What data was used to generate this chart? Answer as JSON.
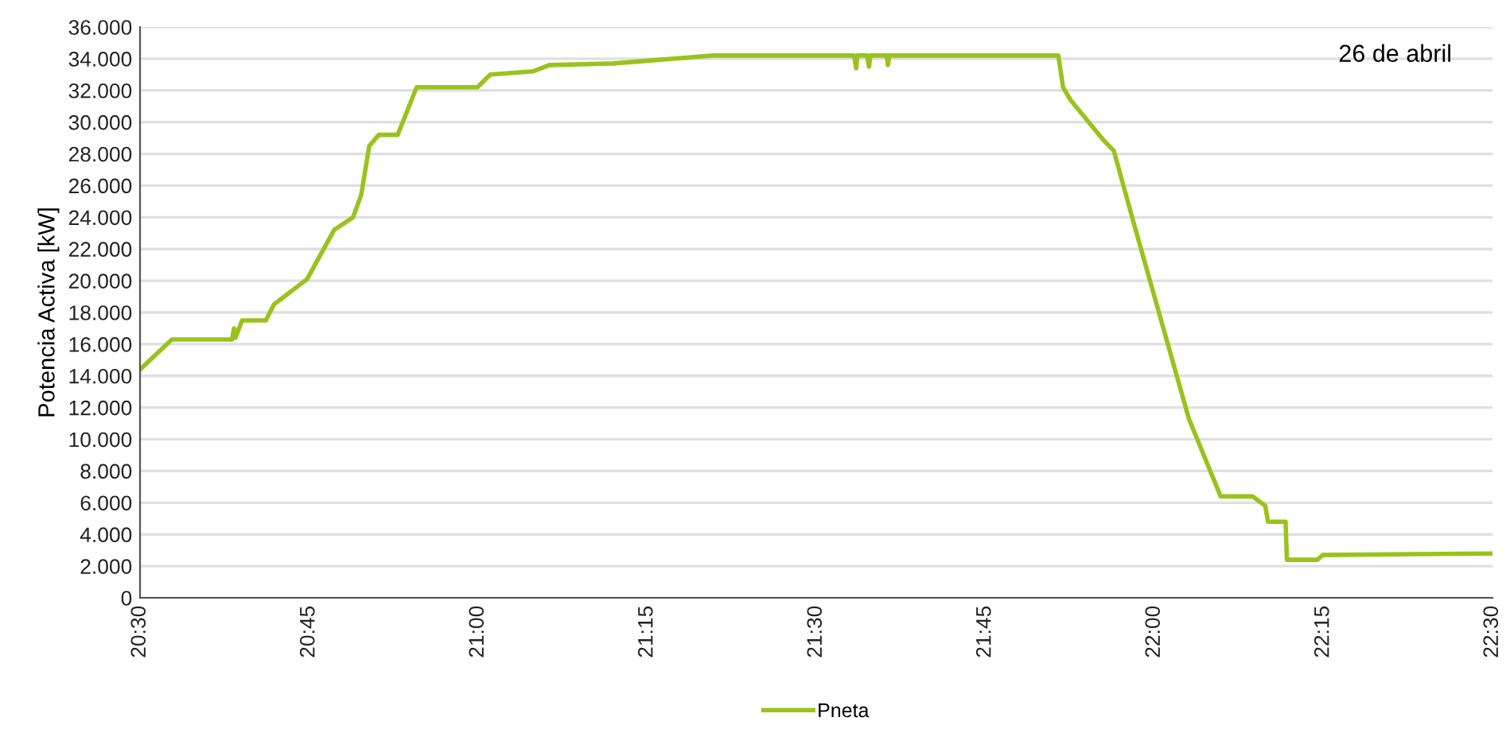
{
  "chart_data": {
    "type": "line",
    "ylabel": "Potencia Activa [kW]",
    "annotations": [
      "26 de abril"
    ],
    "x": [
      20.5,
      20.547,
      20.636,
      20.639,
      20.641,
      20.651,
      20.686,
      20.698,
      20.747,
      20.787,
      20.815,
      20.827,
      20.839,
      20.853,
      20.881,
      20.909,
      20.999,
      21.018,
      21.081,
      21.105,
      21.199,
      21.345,
      21.556,
      21.559,
      21.561,
      21.575,
      21.578,
      21.58,
      21.604,
      21.606,
      21.608,
      21.858,
      21.865,
      21.876,
      21.924,
      21.94,
      21.971,
      22.051,
      22.098,
      22.145,
      22.164,
      22.168,
      22.194,
      22.196,
      22.241,
      22.249,
      22.5
    ],
    "series": [
      {
        "name": "Pneta",
        "color": "#99c31c",
        "values": [
          14400,
          16300,
          16300,
          17000,
          16400,
          17500,
          17500,
          18500,
          20100,
          23200,
          24000,
          25400,
          28500,
          29200,
          29200,
          32200,
          32200,
          33000,
          33200,
          33600,
          33700,
          34200,
          34200,
          33400,
          34200,
          34200,
          33500,
          34200,
          34200,
          33600,
          34200,
          34200,
          32200,
          31400,
          28900,
          28200,
          23400,
          11300,
          6400,
          6400,
          5800,
          4800,
          4800,
          2400,
          2400,
          2700,
          2800
        ]
      }
    ],
    "xlim": [
      20.5,
      22.5
    ],
    "xticks": [
      {
        "value": 20.5,
        "label": "20:30"
      },
      {
        "value": 20.75,
        "label": "20:45"
      },
      {
        "value": 21.0,
        "label": "21:00"
      },
      {
        "value": 21.25,
        "label": "21:15"
      },
      {
        "value": 21.5,
        "label": "21:30"
      },
      {
        "value": 21.75,
        "label": "21:45"
      },
      {
        "value": 22.0,
        "label": "22:00"
      },
      {
        "value": 22.25,
        "label": "22:15"
      },
      {
        "value": 22.5,
        "label": "22:30"
      }
    ],
    "ylim": [
      0,
      36000
    ],
    "yticks": [
      0,
      {
        "value": 2000,
        "label": "2.000"
      },
      {
        "value": 4000,
        "label": "4.000"
      },
      {
        "value": 6000,
        "label": "6.000"
      },
      {
        "value": 8000,
        "label": "8.000"
      },
      {
        "value": 10000,
        "label": "10.000"
      },
      {
        "value": 12000,
        "label": "12.000"
      },
      {
        "value": 14000,
        "label": "14.000"
      },
      {
        "value": 16000,
        "label": "16.000"
      },
      {
        "value": 18000,
        "label": "18.000"
      },
      {
        "value": 20000,
        "label": "20.000"
      },
      {
        "value": 22000,
        "label": "22.000"
      },
      {
        "value": 24000,
        "label": "24.000"
      },
      {
        "value": 26000,
        "label": "26.000"
      },
      {
        "value": 28000,
        "label": "28.000"
      },
      {
        "value": 30000,
        "label": "30.000"
      },
      {
        "value": 32000,
        "label": "32.000"
      },
      {
        "value": 34000,
        "label": "34.000"
      },
      {
        "value": 36000,
        "label": "36.000"
      }
    ],
    "grid": "y",
    "legend": "bottom",
    "marker": "none",
    "line_style": "solid"
  }
}
